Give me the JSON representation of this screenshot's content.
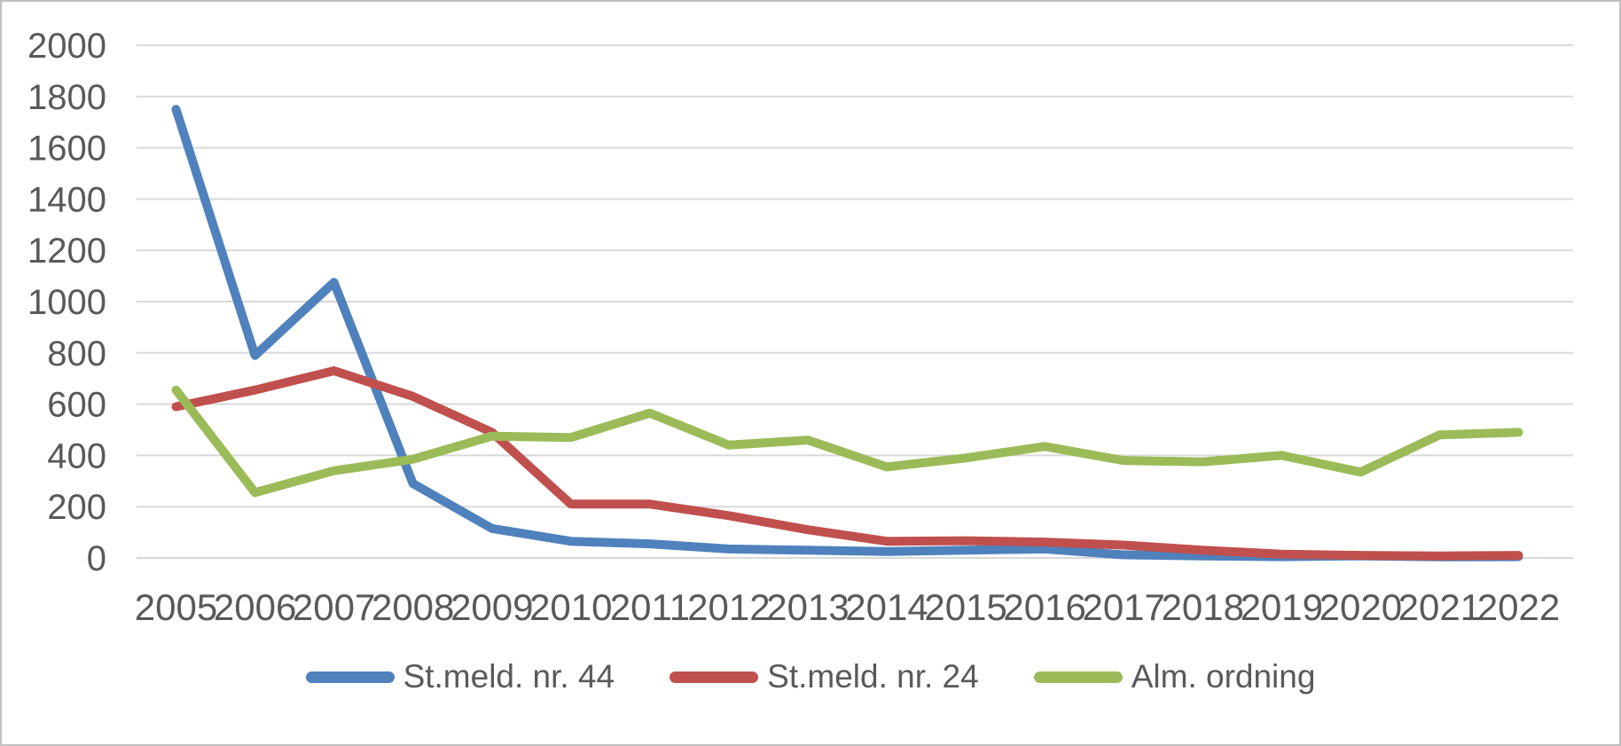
{
  "chart_data": {
    "type": "line",
    "title": "",
    "xlabel": "",
    "ylabel": "",
    "x": [
      "2005",
      "2006",
      "2007",
      "2008",
      "2009",
      "2010",
      "2011",
      "2012",
      "2013",
      "2014",
      "2015",
      "2016",
      "2017",
      "2018",
      "2019",
      "2020",
      "2021",
      "2022"
    ],
    "series": [
      {
        "name": "St.meld. nr. 44",
        "color": "#4F81BD",
        "values": [
          1750,
          790,
          1075,
          290,
          115,
          65,
          55,
          35,
          30,
          25,
          30,
          35,
          12,
          8,
          5,
          8,
          4,
          5
        ]
      },
      {
        "name": "St.meld. nr. 24",
        "color": "#C0504D",
        "values": [
          590,
          655,
          730,
          630,
          490,
          210,
          210,
          165,
          110,
          65,
          67,
          62,
          50,
          30,
          15,
          10,
          8,
          10
        ]
      },
      {
        "name": "Alm. ordning",
        "color": "#9BBB59",
        "values": [
          655,
          255,
          340,
          385,
          475,
          470,
          565,
          440,
          460,
          355,
          390,
          435,
          380,
          375,
          400,
          335,
          480,
          490
        ]
      }
    ],
    "ylim": [
      0,
      2000
    ],
    "ytick_step": 200,
    "yticks": [
      "0",
      "200",
      "400",
      "600",
      "800",
      "1000",
      "1200",
      "1400",
      "1600",
      "1800",
      "2000"
    ],
    "grid": true,
    "legend_position": "bottom",
    "colors": {
      "gridline": "#D9D9D9",
      "axis_text": "#595959",
      "frame_border": "#BFBFBF",
      "background": "#FFFFFF"
    }
  }
}
